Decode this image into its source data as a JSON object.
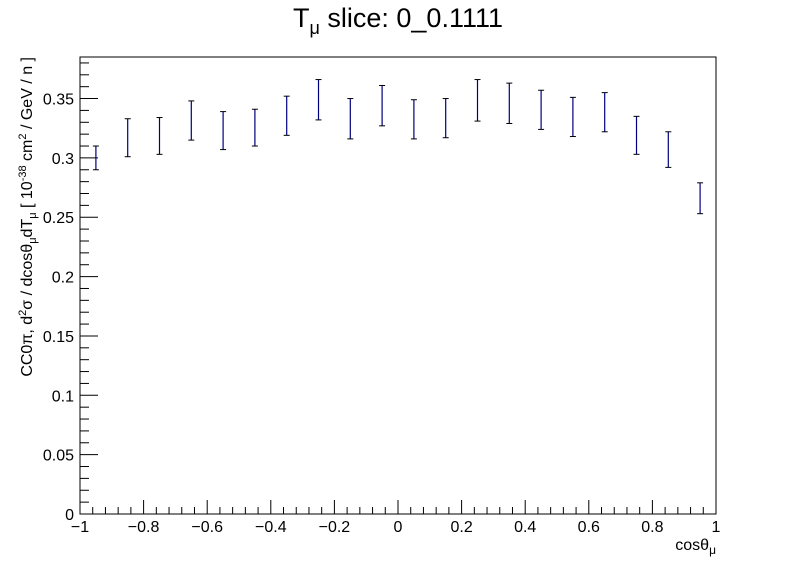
{
  "chart_data": {
    "type": "scatter",
    "title": {
      "main": "T",
      "sub": "μ",
      "rest": " slice: 0_0.1111"
    },
    "xlabel": {
      "main": "cosθ",
      "sub": "μ"
    },
    "ylabel": {
      "p1": "CC0π, d",
      "p1_sup": "2",
      "p2": "σ / dcosθ",
      "p2_sub": "μ",
      "p3": "dT",
      "p3_sub": "μ",
      "p4": " [ 10",
      "p4_sup": "-38",
      "p5": " cm",
      "p5_sup": "2",
      "p6": " / GeV / n ]"
    },
    "xlim": [
      -1,
      1
    ],
    "ylim": [
      0,
      0.385
    ],
    "x_ticks": [
      -1,
      -0.8,
      -0.6,
      -0.4,
      -0.2,
      0,
      0.2,
      0.4,
      0.6,
      0.8,
      1
    ],
    "x_tick_labels": [
      "−1",
      "−0.8",
      "−0.6",
      "−0.4",
      "−0.2",
      "0",
      "0.2",
      "0.4",
      "0.6",
      "0.8",
      "1"
    ],
    "y_ticks": [
      0,
      0.05,
      0.1,
      0.15,
      0.2,
      0.25,
      0.3,
      0.35
    ],
    "y_tick_labels": [
      "0",
      "0.05",
      "0.1",
      "0.15",
      "0.2",
      "0.25",
      "0.3",
      "0.35"
    ],
    "grid": false,
    "colors": {
      "errorbar": "#000080",
      "axes": "#000000",
      "background": "#ffffff"
    },
    "series": [
      {
        "x": [
          -0.95,
          -0.85,
          -0.75,
          -0.65,
          -0.55,
          -0.45,
          -0.35,
          -0.25,
          -0.15,
          -0.05,
          0.05,
          0.15,
          0.25,
          0.35,
          0.45,
          0.55,
          0.65,
          0.75,
          0.85,
          0.95
        ],
        "y_low": [
          0.29,
          0.301,
          0.303,
          0.315,
          0.307,
          0.31,
          0.319,
          0.332,
          0.316,
          0.327,
          0.316,
          0.317,
          0.331,
          0.329,
          0.324,
          0.318,
          0.322,
          0.303,
          0.292,
          0.253
        ],
        "y_high": [
          0.31,
          0.333,
          0.334,
          0.348,
          0.339,
          0.341,
          0.352,
          0.366,
          0.35,
          0.361,
          0.349,
          0.35,
          0.366,
          0.363,
          0.357,
          0.351,
          0.355,
          0.335,
          0.322,
          0.279
        ]
      }
    ]
  }
}
